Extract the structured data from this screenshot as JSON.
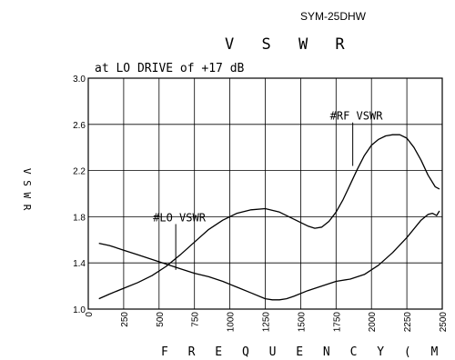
{
  "model_number": "SYM-25DHW",
  "chart_data": {
    "type": "line",
    "title": "V S W R",
    "subtitle": "at LO DRIVE of +17 dB",
    "xlabel": "F R E Q U E N C Y  ( M H z )",
    "ylabel": "V S W R",
    "xlim": [
      0,
      2500
    ],
    "ylim": [
      1.0,
      3.0
    ],
    "xticks": [
      0,
      250,
      500,
      750,
      1000,
      1250,
      1500,
      1750,
      2000,
      2250,
      2500
    ],
    "yticks": [
      1.0,
      1.4,
      1.8,
      2.2,
      2.6,
      3.0
    ],
    "xtick_labels": [
      "0",
      "250",
      "500",
      "750",
      "1000",
      "1250",
      "1500",
      "1750",
      "2000",
      "2250",
      "2500"
    ],
    "ytick_labels": [
      "1.0",
      "1.4",
      "1.8",
      "2.2",
      "2.6",
      "3.0"
    ],
    "grid": true,
    "series": [
      {
        "name": "#RF VSWR",
        "x": [
          75,
          150,
          250,
          350,
          450,
          550,
          650,
          750,
          850,
          950,
          1050,
          1150,
          1250,
          1350,
          1450,
          1550,
          1600,
          1650,
          1700,
          1750,
          1800,
          1850,
          1900,
          1950,
          2000,
          2050,
          2100,
          2150,
          2200,
          2250,
          2300,
          2350,
          2400,
          2450,
          2480
        ],
        "y": [
          1.09,
          1.13,
          1.18,
          1.23,
          1.29,
          1.37,
          1.47,
          1.58,
          1.69,
          1.77,
          1.83,
          1.86,
          1.87,
          1.84,
          1.78,
          1.72,
          1.7,
          1.71,
          1.76,
          1.84,
          1.95,
          2.08,
          2.21,
          2.33,
          2.42,
          2.47,
          2.5,
          2.51,
          2.51,
          2.48,
          2.4,
          2.29,
          2.16,
          2.06,
          2.04
        ]
      },
      {
        "name": "#LO VSWR",
        "x": [
          75,
          150,
          250,
          350,
          450,
          550,
          650,
          750,
          850,
          950,
          1050,
          1150,
          1250,
          1300,
          1350,
          1400,
          1450,
          1550,
          1650,
          1750,
          1850,
          1950,
          2050,
          2150,
          2250,
          2350,
          2400,
          2430,
          2460,
          2480
        ],
        "y": [
          1.57,
          1.55,
          1.51,
          1.47,
          1.43,
          1.39,
          1.35,
          1.31,
          1.28,
          1.24,
          1.19,
          1.14,
          1.09,
          1.08,
          1.08,
          1.09,
          1.11,
          1.16,
          1.2,
          1.24,
          1.26,
          1.3,
          1.38,
          1.49,
          1.62,
          1.77,
          1.82,
          1.83,
          1.81,
          1.85
        ]
      }
    ],
    "annotations": [
      {
        "text": "#RF VSWR",
        "x": 1900,
        "y": 2.64,
        "point_y": 2.24
      },
      {
        "text": "#LO VSWR",
        "x": 650,
        "y": 1.76,
        "point_y": 1.34
      }
    ]
  }
}
